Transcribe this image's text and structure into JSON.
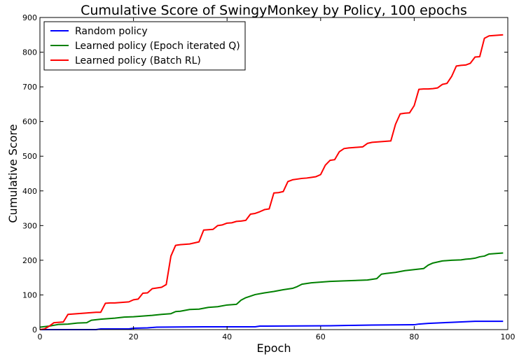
{
  "chart_data": {
    "type": "line",
    "title": "Cumulative Score of SwingyMonkey by Policy, 100 epochs",
    "xlabel": "Epoch",
    "ylabel": "Cumulative Score",
    "xlim": [
      0,
      100
    ],
    "ylim": [
      0,
      900
    ],
    "xticks": [
      0,
      20,
      40,
      60,
      80,
      100
    ],
    "yticks": [
      0,
      100,
      200,
      300,
      400,
      500,
      600,
      700,
      800,
      900
    ],
    "grid": false,
    "legend_position": "top-left",
    "series": [
      {
        "name": "Random policy",
        "color": "#0000ff",
        "x": [
          0,
          12,
          13,
          19,
          20,
          23,
          25,
          35,
          46,
          47,
          62,
          66,
          71,
          80,
          81,
          83,
          88,
          93,
          99
        ],
        "y": [
          0,
          0,
          2,
          2,
          4,
          5,
          7,
          8,
          8,
          10,
          11,
          12,
          13,
          14,
          16,
          18,
          21,
          24,
          24
        ]
      },
      {
        "name": "Learned policy (Epoch iterated Q)",
        "color": "#008000",
        "x": [
          0,
          2,
          4,
          6,
          8,
          10,
          11,
          13,
          14,
          16,
          18,
          20,
          22,
          24,
          26,
          28,
          29,
          30,
          32,
          34,
          36,
          38,
          40,
          42,
          43,
          44,
          46,
          48,
          50,
          52,
          54,
          55,
          56,
          57,
          58,
          60,
          62,
          64,
          66,
          68,
          70,
          72,
          73,
          74,
          76,
          78,
          80,
          82,
          83,
          84,
          85,
          86,
          88,
          90,
          91,
          92,
          93,
          94,
          95,
          96,
          98,
          99
        ],
        "y": [
          7,
          10,
          15,
          16,
          19,
          20,
          27,
          30,
          31,
          33,
          36,
          37,
          39,
          41,
          44,
          46,
          52,
          53,
          58,
          59,
          64,
          66,
          71,
          73,
          85,
          92,
          101,
          106,
          110,
          115,
          119,
          124,
          131,
          133,
          135,
          137,
          139,
          140,
          141,
          142,
          143,
          147,
          160,
          162,
          165,
          170,
          173,
          176,
          186,
          192,
          195,
          198,
          200,
          201,
          203,
          204,
          206,
          210,
          212,
          218,
          220,
          221
        ]
      },
      {
        "name": "Learned policy (Batch RL)",
        "color": "#ff0000",
        "x": [
          0,
          1,
          2,
          3,
          4,
          5,
          6,
          7,
          8,
          9,
          10,
          11,
          12,
          13,
          14,
          15,
          16,
          17,
          18,
          19,
          20,
          21,
          22,
          23,
          24,
          25,
          26,
          27,
          28,
          29,
          30,
          31,
          32,
          33,
          34,
          35,
          36,
          37,
          38,
          39,
          40,
          41,
          42,
          43,
          44,
          45,
          46,
          47,
          48,
          49,
          50,
          51,
          52,
          53,
          54,
          55,
          56,
          57,
          58,
          59,
          60,
          61,
          62,
          63,
          64,
          65,
          66,
          67,
          68,
          69,
          70,
          71,
          72,
          73,
          74,
          75,
          76,
          77,
          78,
          79,
          80,
          81,
          82,
          83,
          84,
          85,
          86,
          87,
          88,
          89,
          90,
          91,
          92,
          93,
          94,
          95,
          96,
          97,
          98,
          99
        ],
        "y": [
          0,
          2,
          10,
          20,
          21,
          22,
          44,
          45,
          46,
          47,
          48,
          49,
          50,
          50,
          76,
          77,
          77,
          78,
          79,
          80,
          86,
          88,
          105,
          106,
          118,
          120,
          122,
          130,
          212,
          243,
          245,
          246,
          247,
          250,
          253,
          287,
          288,
          289,
          300,
          302,
          307,
          308,
          312,
          313,
          315,
          333,
          335,
          340,
          346,
          348,
          394,
          395,
          398,
          427,
          432,
          434,
          436,
          437,
          439,
          441,
          447,
          474,
          488,
          490,
          513,
          522,
          524,
          525,
          526,
          527,
          537,
          540,
          541,
          542,
          543,
          544,
          592,
          622,
          624,
          625,
          646,
          693,
          694,
          694,
          695,
          697,
          707,
          710,
          730,
          760,
          762,
          763,
          768,
          786,
          787,
          840,
          847,
          848,
          849,
          850
        ]
      }
    ]
  }
}
